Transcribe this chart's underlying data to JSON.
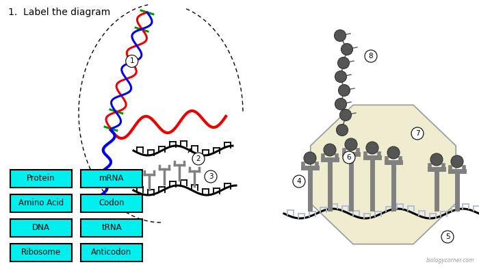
{
  "title": "1.  Label the diagram",
  "bg_color": "#ffffff",
  "cyan_color": "#00EFEF",
  "box_labels_col1": [
    "Protein",
    "Amino Acid",
    "DNA",
    "Ribosome"
  ],
  "box_labels_col2": [
    "mRNA",
    "Codon",
    "tRNA",
    "Anticodon"
  ],
  "watermark": "biologycorner.com",
  "dna_color_red": "#EE0000",
  "dna_color_blue": "#0000EE",
  "dna_color_green": "#009900",
  "ribosome_fill": "#F0ECD0",
  "ribosome_stroke": "#999999",
  "gray_color": "#808080",
  "dark_gray": "#555555",
  "light_blue_codon": "#AABBDD"
}
